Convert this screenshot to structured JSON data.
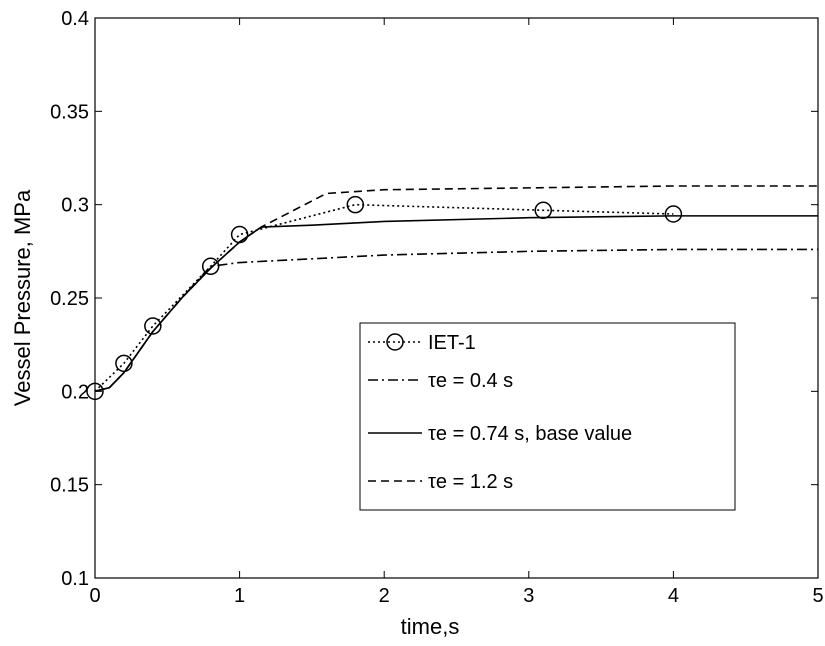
{
  "chart_data": {
    "type": "line",
    "xlabel": "time,s",
    "ylabel": "Vessel Pressure, MPa",
    "xlim": [
      0,
      5
    ],
    "ylim": [
      0.1,
      0.4
    ],
    "xticks": [
      0,
      1,
      2,
      3,
      4,
      5
    ],
    "yticks": [
      0.1,
      0.15,
      0.2,
      0.25,
      0.3,
      0.35,
      0.4
    ],
    "grid": false,
    "legend": "lower right",
    "series": [
      {
        "name": "IET-1",
        "color": "#000000",
        "linestyle": "dotted",
        "marker": "circle",
        "x": [
          0,
          0.2,
          0.4,
          0.8,
          1.0,
          1.8,
          3.1,
          4.0
        ],
        "values": [
          0.2,
          0.215,
          0.235,
          0.267,
          0.284,
          0.3,
          0.297,
          0.295
        ]
      },
      {
        "name": "τe = 0.4 s",
        "color": "#000000",
        "linestyle": "dashdot",
        "x": [
          0,
          0.1,
          0.2,
          0.4,
          0.6,
          0.8,
          1.0,
          1.5,
          2,
          3,
          4,
          5
        ],
        "values": [
          0.2,
          0.202,
          0.21,
          0.232,
          0.25,
          0.267,
          0.269,
          0.271,
          0.273,
          0.275,
          0.276,
          0.276
        ]
      },
      {
        "name": "τe = 0.74 s, base value",
        "color": "#000000",
        "linestyle": "solid",
        "x": [
          0,
          0.1,
          0.2,
          0.4,
          0.6,
          0.8,
          1.0,
          1.15,
          1.5,
          2,
          3,
          4,
          5
        ],
        "values": [
          0.2,
          0.202,
          0.21,
          0.232,
          0.25,
          0.266,
          0.28,
          0.288,
          0.289,
          0.291,
          0.293,
          0.294,
          0.294
        ]
      },
      {
        "name": "τe = 1.2 s",
        "color": "#000000",
        "linestyle": "dashed",
        "x": [
          0,
          0.1,
          0.2,
          0.4,
          0.6,
          0.8,
          1.0,
          1.15,
          1.6,
          2,
          3,
          4,
          5
        ],
        "values": [
          0.2,
          0.202,
          0.21,
          0.232,
          0.25,
          0.266,
          0.28,
          0.288,
          0.306,
          0.308,
          0.309,
          0.31,
          0.31
        ]
      }
    ]
  }
}
